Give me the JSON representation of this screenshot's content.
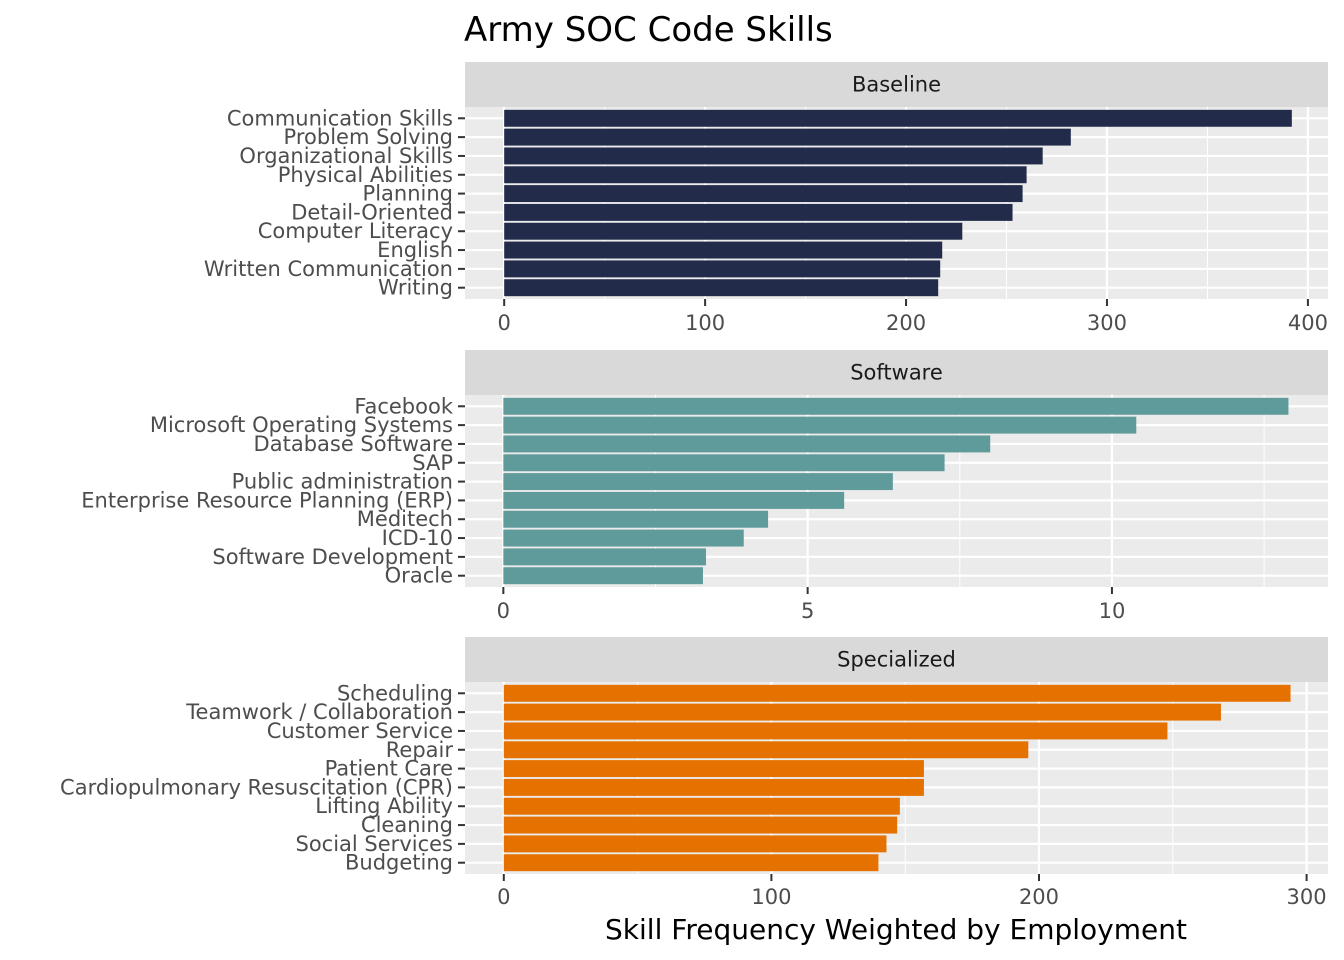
{
  "chart_title": "Army SOC Code Skills",
  "x_axis_label": "Skill Frequency Weighted by Employment",
  "chart_data": [
    {
      "type": "bar",
      "orientation": "horizontal",
      "facet": "Baseline",
      "color": "#232b4b",
      "xlim": [
        -19.5,
        410
      ],
      "xticks": [
        0,
        100,
        200,
        300,
        400
      ],
      "grid": true,
      "categories": [
        "Communication Skills",
        "Problem Solving",
        "Organizational Skills",
        "Physical Abilities",
        "Planning",
        "Detail-Oriented",
        "Computer Literacy",
        "English",
        "Written Communication",
        "Writing"
      ],
      "values": [
        392,
        282,
        268,
        260,
        258,
        253,
        228,
        218,
        217,
        216
      ]
    },
    {
      "type": "bar",
      "orientation": "horizontal",
      "facet": "Software",
      "color": "#5f9b9b",
      "xlim": [
        -0.63,
        13.55
      ],
      "xticks": [
        0,
        5,
        10
      ],
      "grid": true,
      "categories": [
        "Facebook",
        "Microsoft Operating Systems",
        "Database Software",
        "SAP",
        "Public administration",
        "Enterprise Resource Planning (ERP)",
        "Meditech",
        "ICD-10",
        "Software Development",
        "Oracle"
      ],
      "values": [
        12.9,
        10.4,
        8.0,
        7.25,
        6.4,
        5.6,
        4.35,
        3.95,
        3.33,
        3.28
      ]
    },
    {
      "type": "bar",
      "orientation": "horizontal",
      "facet": "Specialized",
      "color": "#e57200",
      "xlim": [
        -14.5,
        308
      ],
      "xticks": [
        0,
        100,
        200,
        300
      ],
      "grid": true,
      "categories": [
        "Scheduling",
        "Teamwork / Collaboration",
        "Customer Service",
        "Repair",
        "Patient Care",
        "Cardiopulmonary Resuscitation (CPR)",
        "Lifting Ability",
        "Cleaning",
        "Social Services",
        "Budgeting"
      ],
      "values": [
        294,
        268,
        248,
        196,
        157,
        157,
        148,
        147,
        143,
        140
      ]
    }
  ]
}
